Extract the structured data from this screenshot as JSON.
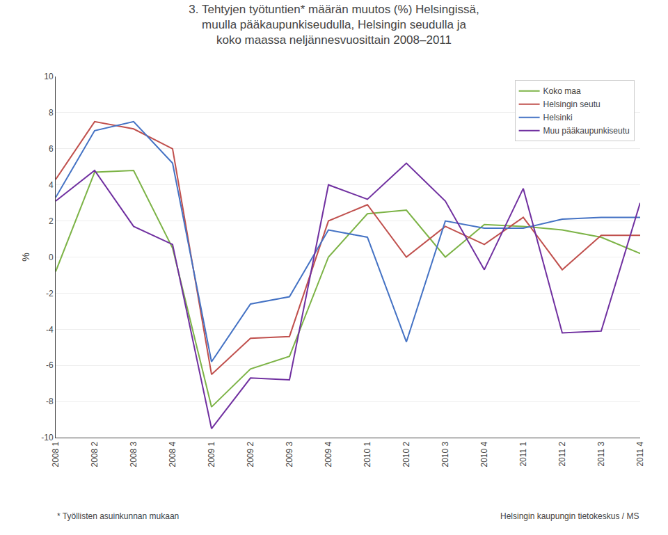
{
  "chart_data": {
    "type": "line",
    "title": "3. Tehtyjen työtuntien* määrän muutos (%) Helsingissä,\nmuulla pääkaupunkiseudulla, Helsingin seudulla ja\nkoko maassa neljännesvuosittain 2008–2011",
    "ylabel": "%",
    "categories": [
      "2008 1",
      "2008 2",
      "2008 3",
      "2008 4",
      "2009 1",
      "2009 2",
      "2009 3",
      "2009 4",
      "2010 1",
      "2010 2",
      "2010 3",
      "2010 4",
      "2011 1",
      "2011 2",
      "2011 3",
      "2011 4"
    ],
    "series": [
      {
        "name": "Koko maa",
        "color": "#7cb346",
        "values": [
          -0.8,
          4.7,
          4.8,
          0.5,
          -8.3,
          -6.2,
          -5.5,
          0.0,
          2.4,
          2.6,
          0.0,
          1.8,
          1.7,
          1.5,
          1.1,
          0.2
        ]
      },
      {
        "name": "Helsingin seutu",
        "color": "#c0504d",
        "values": [
          4.3,
          7.5,
          7.1,
          6.0,
          -6.5,
          -4.5,
          -4.4,
          2.0,
          2.9,
          0.0,
          1.7,
          0.7,
          2.2,
          -0.7,
          1.2,
          1.2
        ]
      },
      {
        "name": "Helsinki",
        "color": "#4472c4",
        "values": [
          3.3,
          7.0,
          7.5,
          5.2,
          -5.8,
          -2.6,
          -2.2,
          1.5,
          1.1,
          -4.7,
          2.0,
          1.6,
          1.6,
          2.1,
          2.2,
          2.2
        ]
      },
      {
        "name": "Muu pääkaupunkiseutu",
        "color": "#7030a0",
        "values": [
          3.1,
          4.8,
          1.7,
          0.7,
          -9.5,
          -6.7,
          -6.8,
          4.0,
          3.2,
          5.2,
          3.1,
          -0.7,
          3.8,
          -4.2,
          -4.1,
          3.0
        ]
      }
    ],
    "ylim": [
      -10,
      10
    ],
    "yticks": [
      -10,
      -8,
      -6,
      -4,
      -2,
      0,
      2,
      4,
      6,
      8,
      10
    ],
    "grid": true,
    "legend": "upper right",
    "annotations": [
      "* Työllisten asuinkunnan mukaan",
      "Helsingin kaupungin tietokeskus / MS"
    ]
  }
}
